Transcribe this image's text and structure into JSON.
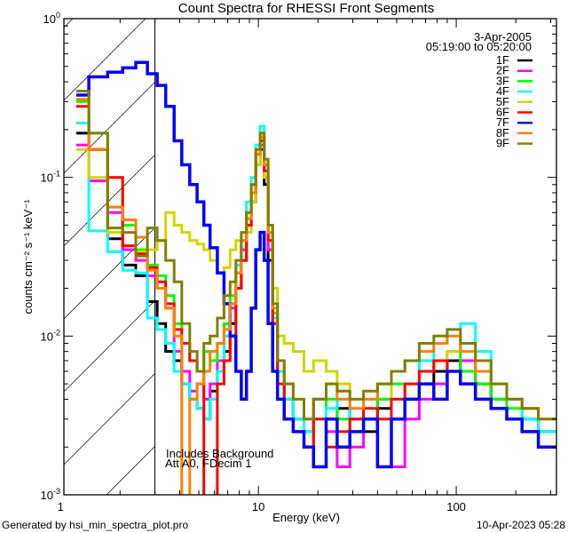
{
  "chart_data": {
    "type": "line",
    "title": "Count Spectra for RHESSI Front Segments",
    "xlabel": "Energy (keV)",
    "ylabel": "counts cm⁻² s⁻¹ keV⁻¹",
    "xscale": "log",
    "yscale": "log",
    "xlim": [
      1.04,
      321
    ],
    "ylim": [
      0.001,
      1
    ],
    "x_ticks": [
      {
        "value": 1,
        "label": "1"
      },
      {
        "value": 10,
        "label": "10"
      },
      {
        "value": 100,
        "label": "100"
      }
    ],
    "y_ticks": [
      {
        "value": 1,
        "base": "10",
        "exp": "0"
      },
      {
        "value": 0.1,
        "base": "10",
        "exp": "-1"
      },
      {
        "value": 0.01,
        "base": "10",
        "exp": "-2"
      },
      {
        "value": 0.001,
        "base": "10",
        "exp": "-3"
      }
    ],
    "legend_position": "top-right",
    "legend_header": [
      "3-Apr-2005",
      "05:19:00 to 05:20:00"
    ],
    "annotations": [
      "Includes Background",
      "Att A0, FDecim 1"
    ],
    "threshold_line_kev": 3.0,
    "hatched_range_kev": [
      1.04,
      3.0
    ],
    "bin_edges_kev": [
      1.2,
      1.39,
      1.73,
      2.06,
      2.4,
      2.75,
      3.08,
      3.4,
      3.75,
      4.1,
      4.5,
      4.9,
      5.3,
      5.7,
      6.2,
      6.7,
      7.2,
      7.7,
      8.2,
      8.7,
      9.2,
      9.7,
      10.2,
      10.7,
      11.2,
      11.8,
      12.5,
      13.5,
      15,
      17,
      19,
      22,
      25,
      29,
      34,
      40,
      47,
      55,
      65,
      77,
      90,
      105,
      125,
      150,
      180,
      215,
      260,
      320
    ],
    "series": [
      {
        "name": "1F",
        "color": "#000000",
        "values": [
          0.19,
          0.15,
          0.041,
          0.028,
          0.024,
          0.0165,
          0.012,
          0.008,
          0.007,
          0.005,
          0.004,
          0.0035,
          0.003,
          0.0045,
          0.006,
          0.008,
          0.012,
          0.02,
          0.03,
          0.05,
          0.07,
          0.12,
          0.15,
          0.09,
          0.03,
          0.012,
          0.006,
          0.004,
          0.003,
          0.0025,
          0.004,
          0.003,
          0.0035,
          0.003,
          0.0025,
          0.0035,
          0.003,
          0.004,
          0.005,
          0.006,
          0.007,
          0.006,
          0.005,
          0.004,
          0.003,
          0.003,
          0.0025
        ]
      },
      {
        "name": "2F",
        "color": "#ff00ff",
        "values": [
          0.16,
          0.095,
          0.06,
          0.035,
          0.03,
          0.024,
          0.02,
          0.015,
          0.008,
          0.006,
          0.0045,
          0.005,
          0.004,
          0.005,
          0.007,
          0.01,
          0.015,
          0.025,
          0.035,
          0.06,
          0.08,
          0.12,
          0.16,
          0.1,
          0.035,
          0.012,
          0.006,
          0.004,
          0.003,
          0.002,
          0.003,
          0.0025,
          0.0015,
          0.002,
          0.003,
          0.004,
          0.0015,
          0.003,
          0.004,
          0.005,
          0.006,
          0.007,
          0.005,
          0.004,
          0.003,
          0.0025,
          0.002
        ]
      },
      {
        "name": "3F",
        "color": "#00ff00",
        "values": [
          0.3,
          0.19,
          0.1,
          0.05,
          0.035,
          0.028,
          0.024,
          0.018,
          0.012,
          0.009,
          0.007,
          0.006,
          0.008,
          0.007,
          0.009,
          0.012,
          0.018,
          0.025,
          0.04,
          0.06,
          0.09,
          0.15,
          0.18,
          0.11,
          0.04,
          0.014,
          0.006,
          0.004,
          0.003,
          0.0025,
          0.003,
          0.004,
          0.003,
          0.0025,
          0.003,
          0.004,
          0.005,
          0.004,
          0.006,
          0.007,
          0.008,
          0.006,
          0.005,
          0.004,
          0.0035,
          0.003,
          0.0025
        ]
      },
      {
        "name": "4F",
        "color": "#00ffff",
        "values": [
          0.22,
          0.046,
          0.034,
          0.026,
          0.025,
          0.013,
          0.011,
          0.009,
          0.006,
          0.005,
          0.004,
          0.0035,
          0.003,
          0.004,
          0.006,
          0.01,
          0.016,
          0.028,
          0.04,
          0.07,
          0.1,
          0.16,
          0.21,
          0.12,
          0.04,
          0.013,
          0.006,
          0.004,
          0.003,
          0.0025,
          0.003,
          0.0035,
          0.004,
          0.003,
          0.004,
          0.005,
          0.004,
          0.005,
          0.007,
          0.009,
          0.011,
          0.012,
          0.008,
          0.005,
          0.004,
          0.003,
          0.0025
        ]
      },
      {
        "name": "5F",
        "color": "#d4d400",
        "values": [
          0.15,
          0.1,
          0.045,
          0.037,
          0.034,
          0.035,
          0.04,
          0.06,
          0.05,
          0.045,
          0.04,
          0.038,
          0.035,
          0.03,
          0.025,
          0.027,
          0.035,
          0.04,
          0.03,
          0.045,
          0.07,
          0.12,
          0.17,
          0.1,
          0.05,
          0.02,
          0.01,
          0.009,
          0.008,
          0.006,
          0.007,
          0.006,
          0.005,
          0.004,
          0.004,
          0.005,
          0.004,
          0.005,
          0.006,
          0.007,
          0.008,
          0.009,
          0.007,
          0.005,
          0.004,
          0.0035,
          0.003
        ]
      },
      {
        "name": "6F",
        "color": "#ff0000",
        "values": [
          0.28,
          0.15,
          0.1,
          0.037,
          0.033,
          0.027,
          0.022,
          0.016,
          0.011,
          0.009,
          0.007,
          0.006,
          0.0008,
          0.0008,
          0.005,
          0.007,
          0.01,
          0.02,
          0.03,
          0.05,
          0.08,
          0.14,
          0.17,
          0.11,
          0.04,
          0.012,
          0.005,
          0.003,
          0.0025,
          0.002,
          0.003,
          0.002,
          0.0025,
          0.003,
          0.0035,
          0.003,
          0.004,
          0.005,
          0.006,
          0.007,
          0.006,
          0.005,
          0.004,
          0.0035,
          0.003,
          0.0025,
          0.002
        ]
      },
      {
        "name": "7F",
        "color": "#0000ff",
        "values": [
          0.33,
          0.43,
          0.46,
          0.49,
          0.53,
          0.45,
          0.38,
          0.28,
          0.17,
          0.12,
          0.09,
          0.07,
          0.05,
          0.036,
          0.025,
          0.016,
          0.01,
          0.006,
          0.004,
          0.006,
          0.015,
          0.035,
          0.045,
          0.03,
          0.012,
          0.006,
          0.004,
          0.003,
          0.0025,
          0.002,
          0.0015,
          0.003,
          0.002,
          0.0025,
          0.003,
          0.0015,
          0.003,
          0.004,
          0.005,
          0.004,
          0.006,
          0.005,
          0.004,
          0.0035,
          0.003,
          0.0025,
          0.002
        ]
      },
      {
        "name": "8F",
        "color": "#ff8000",
        "values": [
          0.31,
          0.15,
          0.065,
          0.054,
          0.042,
          0.026,
          0.02,
          0.015,
          0.01,
          0.0009,
          0.004,
          0.005,
          0.006,
          0.008,
          0.009,
          0.011,
          0.016,
          0.025,
          0.04,
          0.055,
          0.08,
          0.14,
          0.18,
          0.12,
          0.045,
          0.015,
          0.007,
          0.005,
          0.004,
          0.003,
          0.004,
          0.005,
          0.004,
          0.0035,
          0.004,
          0.005,
          0.006,
          0.007,
          0.008,
          0.009,
          0.01,
          0.008,
          0.006,
          0.005,
          0.004,
          0.0035,
          0.003
        ]
      },
      {
        "name": "9F",
        "color": "#808000",
        "values": [
          0.35,
          0.19,
          0.048,
          0.045,
          0.032,
          0.048,
          0.04,
          0.03,
          0.022,
          0.012,
          0.008,
          0.006,
          0.009,
          0.01,
          0.013,
          0.018,
          0.022,
          0.03,
          0.045,
          0.06,
          0.09,
          0.15,
          0.19,
          0.13,
          0.05,
          0.016,
          0.007,
          0.005,
          0.004,
          0.003,
          0.004,
          0.005,
          0.0045,
          0.004,
          0.0045,
          0.005,
          0.006,
          0.007,
          0.009,
          0.01,
          0.011,
          0.009,
          0.007,
          0.005,
          0.004,
          0.0035,
          0.003
        ]
      }
    ]
  },
  "footer": {
    "generated_by": "Generated by hsi_min_spectra_plot.pro",
    "timestamp": "10-Apr-2023 05:28"
  }
}
